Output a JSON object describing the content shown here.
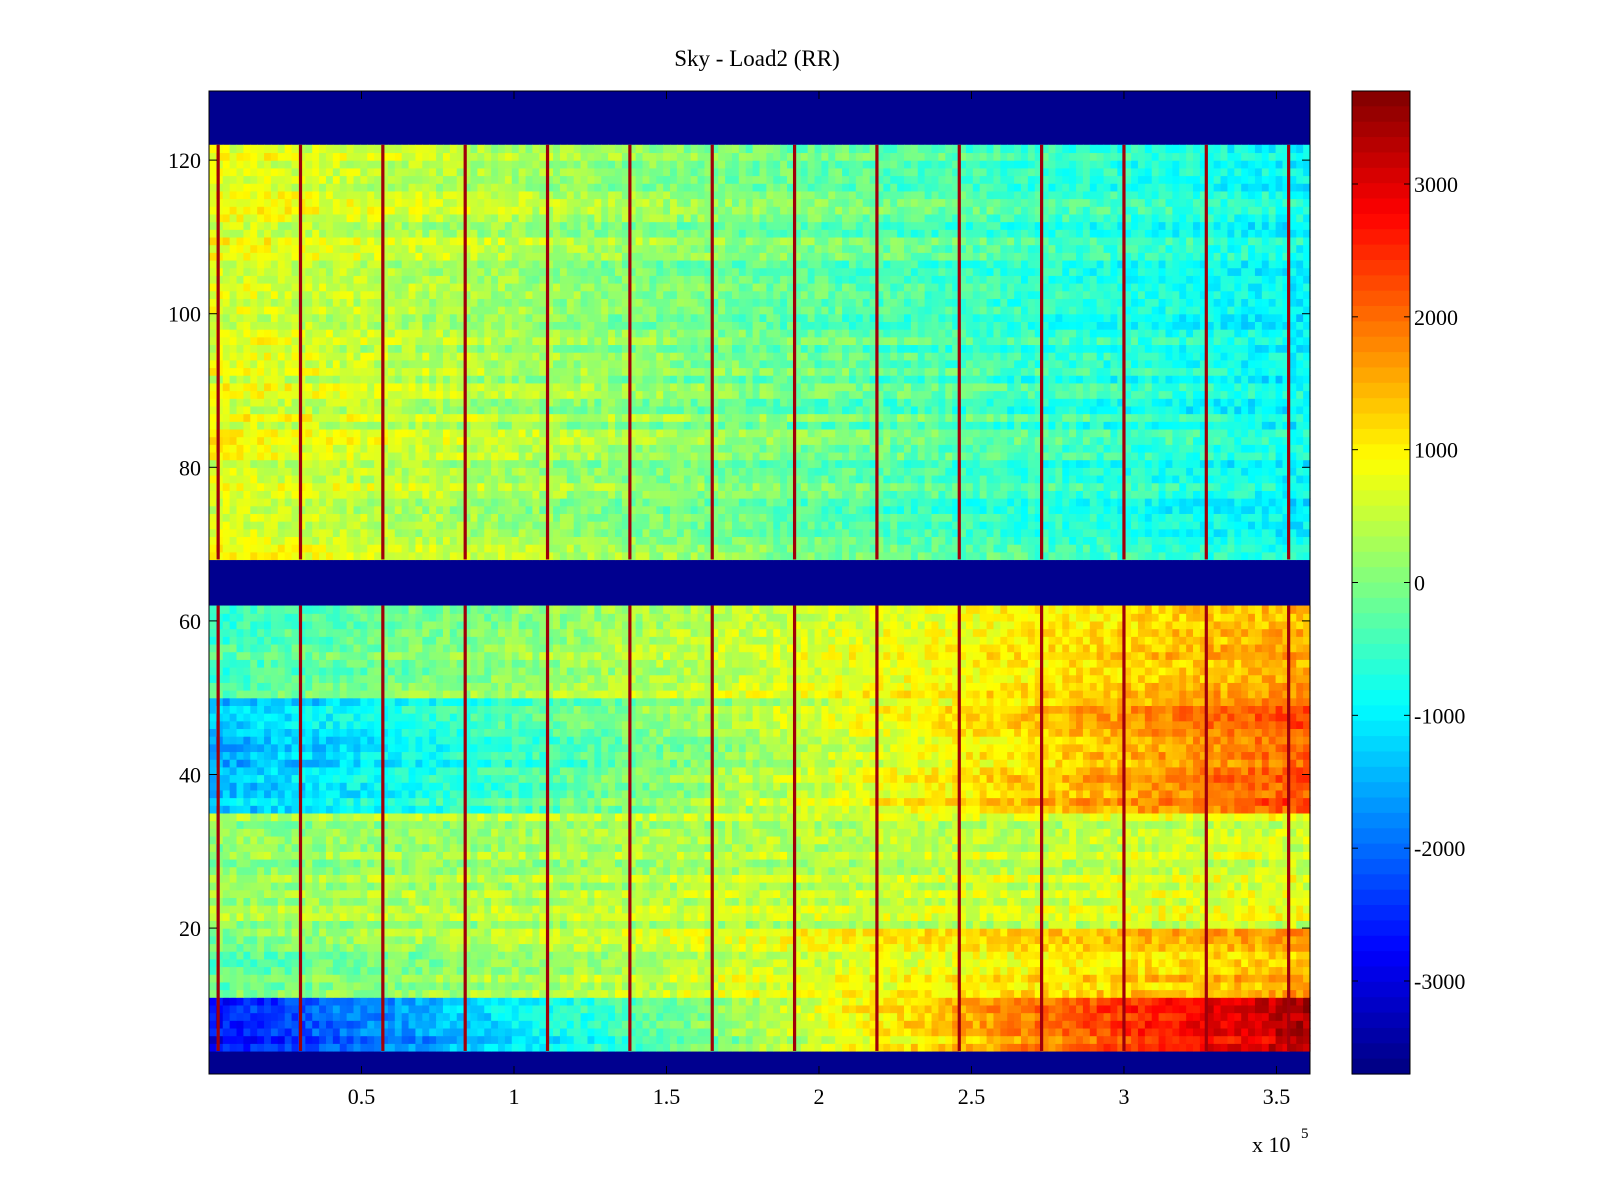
{
  "chart_data": {
    "type": "heatmap",
    "title": "Sky - Load2 (RR)",
    "xlabel": "",
    "ylabel": "",
    "x_exponent_label": "x 10",
    "x_exponent_power": "5",
    "xlim": [
      0,
      3.61
    ],
    "ylim": [
      1,
      129
    ],
    "x_ticks": [
      {
        "value": 0.5,
        "label": "0.5"
      },
      {
        "value": 1.0,
        "label": "1"
      },
      {
        "value": 1.5,
        "label": "1.5"
      },
      {
        "value": 2.0,
        "label": "2"
      },
      {
        "value": 2.5,
        "label": "2.5"
      },
      {
        "value": 3.0,
        "label": "3"
      },
      {
        "value": 3.5,
        "label": "3.5"
      }
    ],
    "y_ticks": [
      {
        "value": 20,
        "label": "20"
      },
      {
        "value": 40,
        "label": "40"
      },
      {
        "value": 60,
        "label": "60"
      },
      {
        "value": 80,
        "label": "80"
      },
      {
        "value": 100,
        "label": "100"
      },
      {
        "value": 120,
        "label": "120"
      }
    ],
    "colorbar": {
      "colormap": "jet",
      "clim": [
        -3700,
        3700
      ],
      "ticks": [
        {
          "value": 3000,
          "label": "3000"
        },
        {
          "value": 2000,
          "label": "2000"
        },
        {
          "value": 1000,
          "label": "1000"
        },
        {
          "value": 0,
          "label": "0"
        },
        {
          "value": -1000,
          "label": "-1000"
        },
        {
          "value": -2000,
          "label": "-2000"
        },
        {
          "value": -3000,
          "label": "-3000"
        }
      ]
    },
    "masked_rows": [
      [
        1,
        4
      ],
      [
        62,
        68
      ],
      [
        122,
        129
      ]
    ],
    "stripe_columns": [
      0.03,
      0.3,
      0.57,
      0.84,
      1.11,
      1.38,
      1.65,
      1.92,
      2.19,
      2.46,
      2.73,
      3.0,
      3.27,
      3.54
    ],
    "row_bands": [
      {
        "rows": [
          4,
          11
        ],
        "start_value": -2800,
        "end_value": 3300
      },
      {
        "rows": [
          11,
          20
        ],
        "start_value": -200,
        "end_value": 1500
      },
      {
        "rows": [
          20,
          35
        ],
        "start_value": 200,
        "end_value": 700
      },
      {
        "rows": [
          35,
          50
        ],
        "start_value": -1400,
        "end_value": 2200
      },
      {
        "rows": [
          50,
          62
        ],
        "start_value": -400,
        "end_value": 1600
      },
      {
        "rows": [
          68,
          122
        ],
        "start_value": 800,
        "end_value": -900
      }
    ]
  }
}
